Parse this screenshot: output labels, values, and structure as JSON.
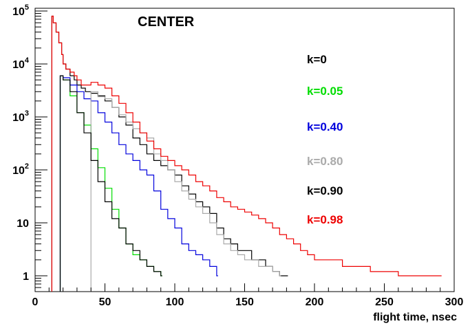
{
  "chart_data": {
    "type": "line",
    "title": "CENTER",
    "xlabel": "flight time, nsec",
    "ylabel": "",
    "xlim": [
      0,
      300
    ],
    "ylim": [
      0.5,
      100000
    ],
    "yscale": "log",
    "grid": false,
    "legend_placement": "right",
    "x_ticks": [
      "0",
      "50",
      "100",
      "150",
      "200",
      "250",
      "300"
    ],
    "y_ticks": [
      {
        "base": "1",
        "exp": ""
      },
      {
        "base": "10",
        "exp": ""
      },
      {
        "base": "10",
        "exp": "2"
      },
      {
        "base": "10",
        "exp": "3"
      },
      {
        "base": "10",
        "exp": "4"
      },
      {
        "base": "10",
        "exp": "5"
      }
    ],
    "series": [
      {
        "name": "k=0",
        "color": "#000000",
        "x": [
          12,
          13,
          15,
          17,
          19,
          20,
          22,
          25,
          28,
          30,
          33,
          36,
          40,
          45,
          50,
          55,
          60,
          65,
          70,
          75,
          80,
          85,
          90,
          95,
          100,
          105,
          110,
          115,
          120,
          125,
          130,
          135,
          140,
          145,
          150,
          155,
          160,
          165,
          170,
          175,
          180
        ],
        "y": [
          80000,
          60000,
          40000,
          25000,
          15000,
          10000,
          8000,
          6000,
          5000,
          4000,
          3500,
          3000,
          2800,
          2500,
          2000,
          1500,
          1000,
          700,
          400,
          300,
          200,
          150,
          120,
          100,
          80,
          50,
          35,
          25,
          20,
          15,
          8,
          5,
          4,
          3,
          3,
          2,
          2,
          1.5,
          1.2,
          1,
          1
        ]
      },
      {
        "name": "k=0.05",
        "color": "#00dd00",
        "x": [
          18,
          20,
          25,
          30,
          35,
          40,
          45,
          50,
          55,
          60,
          65,
          70,
          75,
          80,
          85,
          90
        ],
        "y": [
          6000,
          5000,
          2500,
          1200,
          700,
          250,
          110,
          45,
          18,
          8,
          4,
          2.5,
          2,
          1.5,
          1.2,
          1
        ]
      },
      {
        "name": "k=0.40",
        "color": "#0000dd",
        "x": [
          18,
          20,
          25,
          30,
          35,
          40,
          45,
          50,
          55,
          60,
          65,
          70,
          75,
          80,
          85,
          90,
          95,
          100,
          105,
          110,
          115,
          120,
          125,
          130
        ],
        "y": [
          6000,
          5500,
          4000,
          3000,
          2200,
          2000,
          1200,
          800,
          500,
          300,
          200,
          150,
          100,
          80,
          40,
          18,
          12,
          8,
          4,
          3,
          2.5,
          2,
          1.5,
          1
        ]
      },
      {
        "name": "k=0.80",
        "color": "#aaaaaa",
        "x": [
          40,
          45,
          50,
          55,
          60,
          65,
          70,
          75,
          80,
          85,
          90,
          95,
          100,
          105,
          110,
          115,
          120,
          125,
          130,
          135,
          140,
          145,
          150,
          155,
          160,
          165,
          170,
          175
        ],
        "y": [
          3000,
          2400,
          2200,
          1500,
          1100,
          800,
          600,
          500,
          400,
          200,
          150,
          100,
          60,
          40,
          28,
          20,
          15,
          10,
          6,
          4,
          3,
          2.5,
          2,
          2,
          1.5,
          1.5,
          1.2,
          1
        ]
      },
      {
        "name": "k=0.90",
        "color": "#000000",
        "x": [
          18,
          20,
          25,
          30,
          35,
          40,
          45,
          50,
          55,
          60,
          65,
          70,
          75,
          80,
          85,
          90
        ],
        "y": [
          6000,
          5000,
          3000,
          1200,
          500,
          150,
          60,
          25,
          12,
          8,
          4,
          3,
          2,
          1.5,
          1.2,
          1
        ]
      },
      {
        "name": "k=0.98",
        "color": "#ee0000",
        "x": [
          12,
          13,
          15,
          17,
          19,
          20,
          22,
          25,
          28,
          30,
          33,
          36,
          40,
          45,
          50,
          55,
          60,
          65,
          70,
          75,
          80,
          85,
          90,
          95,
          100,
          105,
          110,
          115,
          120,
          125,
          130,
          135,
          140,
          145,
          150,
          155,
          160,
          165,
          170,
          175,
          180,
          185,
          190,
          195,
          200,
          210,
          220,
          230,
          240,
          250,
          260,
          270,
          280,
          290
        ],
        "y": [
          80000,
          60000,
          40000,
          25000,
          15000,
          10000,
          8000,
          7000,
          6000,
          5000,
          4000,
          4000,
          4500,
          4000,
          3500,
          2500,
          1800,
          1200,
          800,
          500,
          350,
          250,
          180,
          150,
          120,
          100,
          80,
          60,
          50,
          40,
          30,
          25,
          20,
          18,
          16,
          14,
          12,
          10,
          8,
          6,
          5,
          4,
          3,
          2.5,
          2,
          2,
          1.5,
          1.5,
          1.2,
          1.2,
          1,
          1,
          1,
          1
        ]
      }
    ]
  }
}
